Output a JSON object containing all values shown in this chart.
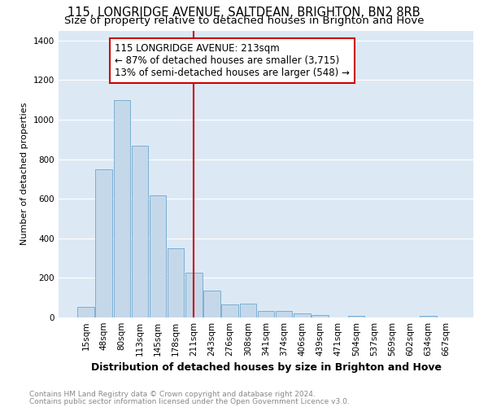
{
  "title": "115, LONGRIDGE AVENUE, SALTDEAN, BRIGHTON, BN2 8RB",
  "subtitle": "Size of property relative to detached houses in Brighton and Hove",
  "xlabel": "Distribution of detached houses by size in Brighton and Hove",
  "ylabel": "Number of detached properties",
  "footnote1": "Contains HM Land Registry data © Crown copyright and database right 2024.",
  "footnote2": "Contains public sector information licensed under the Open Government Licence v3.0.",
  "categories": [
    "15sqm",
    "48sqm",
    "80sqm",
    "113sqm",
    "145sqm",
    "178sqm",
    "211sqm",
    "243sqm",
    "276sqm",
    "308sqm",
    "341sqm",
    "374sqm",
    "406sqm",
    "439sqm",
    "471sqm",
    "504sqm",
    "537sqm",
    "569sqm",
    "602sqm",
    "634sqm",
    "667sqm"
  ],
  "values": [
    55,
    750,
    1100,
    870,
    615,
    350,
    225,
    135,
    65,
    70,
    32,
    32,
    20,
    12,
    0,
    10,
    0,
    0,
    0,
    10,
    0
  ],
  "bar_color": "#c5d8ea",
  "bar_edge_color": "#7bafd4",
  "vline_x_idx": 6,
  "vline_color": "#cc0000",
  "annotation_title": "115 LONGRIDGE AVENUE: 213sqm",
  "annotation_line1": "← 87% of detached houses are smaller (3,715)",
  "annotation_line2": "13% of semi-detached houses are larger (548) →",
  "annotation_box_facecolor": "#ffffff",
  "annotation_box_edgecolor": "#cc0000",
  "ylim": [
    0,
    1450
  ],
  "yticks": [
    0,
    200,
    400,
    600,
    800,
    1000,
    1200,
    1400
  ],
  "fig_bg_color": "#ffffff",
  "plot_bg_color": "#dce9f5",
  "grid_color": "#ffffff",
  "title_fontsize": 10.5,
  "subtitle_fontsize": 9.5,
  "ylabel_fontsize": 8,
  "xlabel_fontsize": 9,
  "tick_fontsize": 7.5,
  "footnote_fontsize": 6.5
}
